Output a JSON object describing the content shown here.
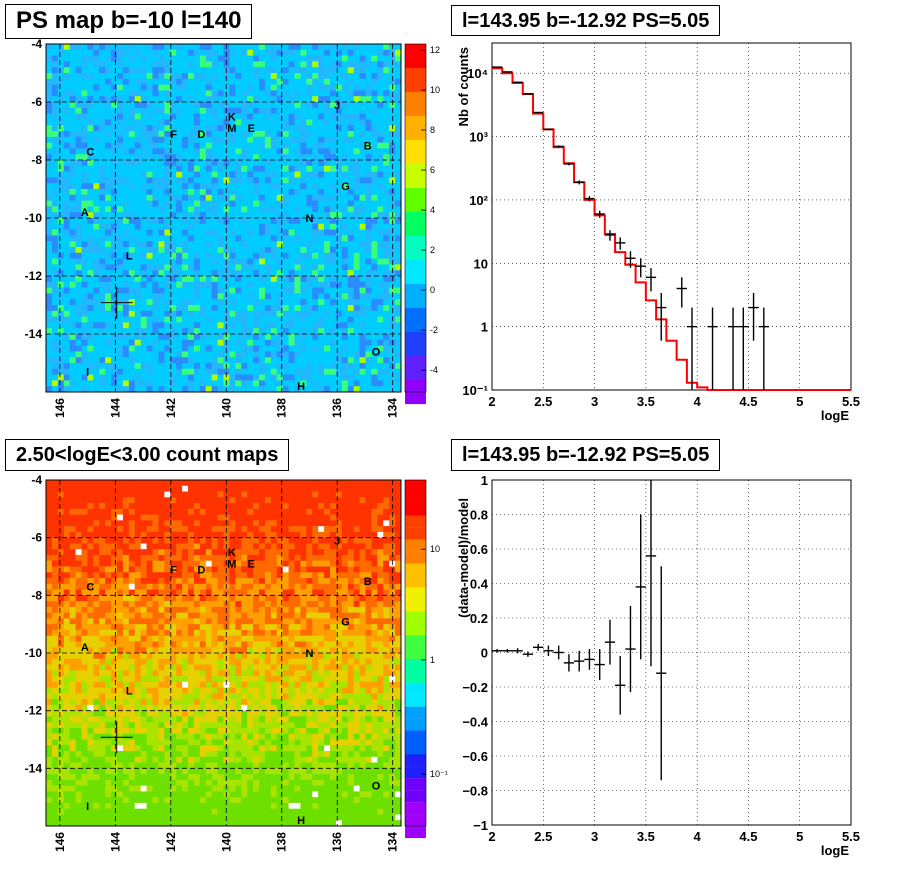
{
  "panels": {
    "map_top": {
      "title": "PS map b=-10 l=140",
      "colorbar_ticks": [
        "12",
        "10",
        "8",
        "6",
        "4",
        "2",
        "0",
        "-2",
        "-4"
      ],
      "colors": {
        "base": "#00ccff",
        "low": "#2a8cff",
        "mid": "#39ff7a",
        "hi": "#b0ff00"
      }
    },
    "spectrum": {
      "title": "l=143.95 b=-12.92 PS=5.05",
      "xlabel": "logE",
      "ylabel": "Nb of counts"
    },
    "map_bottom": {
      "title": "2.50<logE<3.00 count maps",
      "colorbar_ticks": [
        "10",
        "1",
        "10⁻¹"
      ]
    },
    "residual": {
      "title": "l=143.95 b=-12.92 PS=5.05",
      "xlabel": "logE",
      "ylabel": "(data-model)/model"
    }
  },
  "map_axes": {
    "x_ticks": [
      "146",
      "144",
      "142",
      "140",
      "138",
      "136",
      "134"
    ],
    "y_ticks": [
      "-4",
      "-6",
      "-8",
      "-10",
      "-12",
      "-14"
    ],
    "sources": [
      {
        "name": "A",
        "l": 145.1,
        "b": -9.8
      },
      {
        "name": "B",
        "l": 134.9,
        "b": -7.5
      },
      {
        "name": "C",
        "l": 144.9,
        "b": -7.7
      },
      {
        "name": "D",
        "l": 140.9,
        "b": -7.1
      },
      {
        "name": "E",
        "l": 139.1,
        "b": -6.9
      },
      {
        "name": "F",
        "l": 141.9,
        "b": -7.1
      },
      {
        "name": "G",
        "l": 135.7,
        "b": -8.9
      },
      {
        "name": "H",
        "l": 137.3,
        "b": -15.8
      },
      {
        "name": "I",
        "l": 145.0,
        "b": -15.3
      },
      {
        "name": "J",
        "l": 136.0,
        "b": -6.1
      },
      {
        "name": "K",
        "l": 139.8,
        "b": -6.5
      },
      {
        "name": "L",
        "l": 143.5,
        "b": -11.3
      },
      {
        "name": "M",
        "l": 139.8,
        "b": -6.9
      },
      {
        "name": "N",
        "l": 137.0,
        "b": -10.0
      },
      {
        "name": "O",
        "l": 134.6,
        "b": -14.6
      }
    ],
    "target": {
      "l": 143.95,
      "b": -12.92
    }
  },
  "chart_data": [
    {
      "type": "scatter",
      "panel": "spectrum",
      "title": "l=143.95 b=-12.92 PS=5.05",
      "xlabel": "logE",
      "ylabel": "Nb of counts",
      "xlim": [
        2,
        5.5
      ],
      "ylim": [
        0.1,
        30000
      ],
      "yscale": "log",
      "grid": true,
      "x_ticks": [
        2,
        2.5,
        3,
        3.5,
        4,
        4.5,
        5,
        5.5
      ],
      "x_tick_labels": [
        "2",
        "2.5",
        "3",
        "3.5",
        "4",
        "4.5",
        "5",
        "5.5"
      ],
      "y_tick_labels": [
        "10⁻¹",
        "1",
        "10",
        "10²",
        "10³",
        "10⁴"
      ],
      "y_tick_values": [
        0.1,
        1,
        10,
        100,
        1000,
        10000
      ],
      "bin_width": 0.1,
      "series": [
        {
          "kind": "data",
          "color": "#000000",
          "x": [
            2.05,
            2.15,
            2.25,
            2.35,
            2.45,
            2.55,
            2.65,
            2.75,
            2.85,
            2.95,
            3.05,
            3.15,
            3.25,
            3.35,
            3.45,
            3.55,
            3.65,
            3.85,
            3.95,
            4.15,
            4.35,
            4.45,
            4.55,
            4.65
          ],
          "y": [
            12500,
            10500,
            7200,
            4700,
            2400,
            1300,
            700,
            370,
            190,
            105,
            60,
            28,
            21,
            12,
            9,
            6,
            2,
            4,
            1,
            1,
            1,
            1,
            2,
            1
          ],
          "err": [
            110,
            100,
            85,
            68,
            49,
            36,
            26,
            19,
            14,
            10,
            7.7,
            5.3,
            4.6,
            3.5,
            3,
            2.4,
            1.4,
            2,
            1,
            1,
            1,
            1,
            1.4,
            1
          ]
        },
        {
          "kind": "model",
          "color": "#ff0000",
          "edges": [
            2.0,
            2.1,
            2.2,
            2.3,
            2.4,
            2.5,
            2.6,
            2.7,
            2.8,
            2.9,
            3.0,
            3.1,
            3.2,
            3.3,
            3.4,
            3.5,
            3.6,
            3.7,
            3.8,
            3.9,
            4.0,
            4.1,
            5.5
          ],
          "values": [
            12000,
            10000,
            7000,
            4700,
            2300,
            1300,
            680,
            380,
            190,
            100,
            57,
            29,
            15,
            9.5,
            5,
            2.6,
            1.3,
            0.6,
            0.3,
            0.13,
            0.11,
            0.1
          ]
        }
      ]
    },
    {
      "type": "scatter",
      "panel": "residual",
      "title": "l=143.95 b=-12.92 PS=5.05",
      "xlabel": "logE",
      "ylabel": "(data-model)/model",
      "xlim": [
        2,
        5.5
      ],
      "ylim": [
        -1,
        1
      ],
      "grid": true,
      "x_ticks": [
        2,
        2.5,
        3,
        3.5,
        4,
        4.5,
        5,
        5.5
      ],
      "x_tick_labels": [
        "2",
        "2.5",
        "3",
        "3.5",
        "4",
        "4.5",
        "5",
        "5.5"
      ],
      "y_ticks": [
        -1,
        -0.8,
        -0.6,
        -0.4,
        -0.2,
        0,
        0.2,
        0.4,
        0.6,
        0.8,
        1
      ],
      "y_tick_labels": [
        "−1",
        "−0.8",
        "−0.6",
        "−0.4",
        "−0.2",
        "0",
        "0.2",
        "0.4",
        "0.6",
        "0.8",
        "1"
      ],
      "bin_width": 0.1,
      "series": [
        {
          "kind": "residual",
          "color": "#000000",
          "x": [
            2.05,
            2.15,
            2.25,
            2.35,
            2.45,
            2.55,
            2.65,
            2.75,
            2.85,
            2.95,
            3.05,
            3.15,
            3.25,
            3.35,
            3.45,
            3.55,
            3.65
          ],
          "y": [
            0.01,
            0.01,
            0.01,
            -0.01,
            0.03,
            0.01,
            0.0,
            -0.06,
            -0.05,
            -0.04,
            -0.07,
            0.06,
            -0.19,
            0.02,
            0.38,
            0.56,
            -0.12
          ],
          "err": [
            0.01,
            0.01,
            0.015,
            0.015,
            0.02,
            0.03,
            0.04,
            0.05,
            0.06,
            0.06,
            0.09,
            0.13,
            0.17,
            0.25,
            0.42,
            0.64,
            0.62
          ]
        }
      ]
    }
  ]
}
